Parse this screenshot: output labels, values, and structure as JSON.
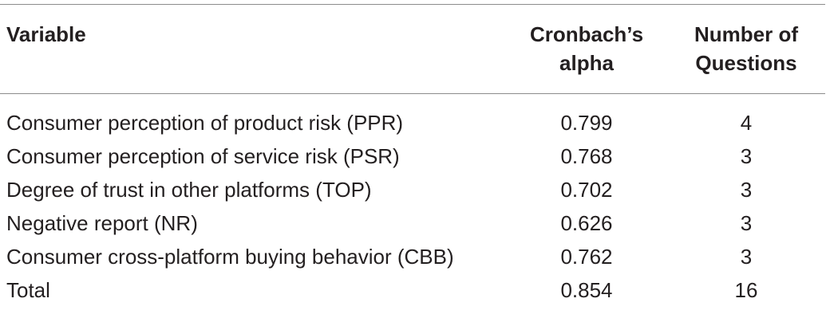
{
  "table": {
    "headers": {
      "variable": "Variable",
      "alpha_line1": "Cronbach’s",
      "alpha_line2": "alpha",
      "count_line1": "Number of",
      "count_line2": "Questions"
    },
    "rows": [
      {
        "variable": "Consumer perception of product risk (PPR)",
        "alpha": "0.799",
        "count": "4"
      },
      {
        "variable": "Consumer perception of service risk (PSR)",
        "alpha": "0.768",
        "count": "3"
      },
      {
        "variable": "Degree of trust in other platforms (TOP)",
        "alpha": "0.702",
        "count": "3"
      },
      {
        "variable": "Negative report (NR)",
        "alpha": "0.626",
        "count": "3"
      },
      {
        "variable": "Consumer cross-platform buying behavior (CBB)",
        "alpha": "0.762",
        "count": "3"
      },
      {
        "variable": "Total",
        "alpha": "0.854",
        "count": "16"
      }
    ]
  }
}
